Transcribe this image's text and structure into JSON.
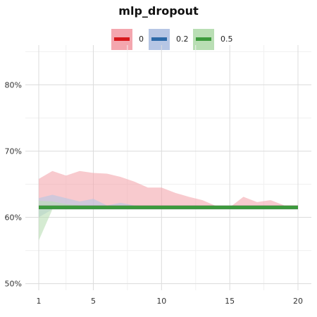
{
  "chart_data": {
    "type": "line",
    "title": "mlp_dropout",
    "xlabel": "",
    "ylabel": "",
    "x": [
      1,
      2,
      3,
      4,
      5,
      6,
      7,
      8,
      9,
      10,
      11,
      12,
      13,
      14,
      15,
      16,
      17,
      18,
      19,
      20
    ],
    "xticks": [
      1,
      5,
      10,
      15,
      20
    ],
    "xtick_labels": [
      "1",
      "5",
      "10",
      "15",
      "20"
    ],
    "xlim": [
      1,
      20
    ],
    "ylim": [
      0.49,
      0.86
    ],
    "yticks": [
      0.5,
      0.6,
      0.7,
      0.8
    ],
    "ytick_labels": [
      "50%",
      "60%",
      "70%",
      "80%"
    ],
    "grid": true,
    "legend_position": "top",
    "series": [
      {
        "name": "0",
        "color": "#d7191c",
        "band_color": "#f4a6ae",
        "values": [
          0.615,
          0.615,
          0.615,
          0.615,
          0.615,
          0.615,
          0.615,
          0.615,
          0.615,
          0.615,
          0.615,
          0.615,
          0.615,
          0.615,
          0.615,
          0.615,
          0.615,
          0.615,
          0.615,
          0.615
        ],
        "upper": [
          0.658,
          0.67,
          0.663,
          0.67,
          0.667,
          0.666,
          0.661,
          0.654,
          0.645,
          0.645,
          0.637,
          0.631,
          0.626,
          0.617,
          0.615,
          0.631,
          0.623,
          0.626,
          0.618,
          0.618
        ],
        "lower": [
          0.612,
          0.612,
          0.612,
          0.612,
          0.612,
          0.612,
          0.612,
          0.612,
          0.612,
          0.612,
          0.612,
          0.612,
          0.612,
          0.612,
          0.612,
          0.612,
          0.612,
          0.612,
          0.612,
          0.612
        ]
      },
      {
        "name": "0.2",
        "color": "#2c6aa8",
        "band_color": "#b6c6e4",
        "values": [
          0.615,
          0.615,
          0.615,
          0.615,
          0.615,
          0.615,
          0.615,
          0.615,
          0.615,
          0.615,
          0.615,
          0.615,
          0.615,
          0.615,
          0.615,
          0.615,
          0.615,
          0.615,
          0.615,
          0.615
        ],
        "upper": [
          0.629,
          0.634,
          0.629,
          0.624,
          0.628,
          0.618,
          0.622,
          0.618,
          0.617,
          0.617,
          0.617,
          0.617,
          0.617,
          0.617,
          0.617,
          0.617,
          0.617,
          0.617,
          0.617,
          0.617
        ],
        "lower": [
          0.6,
          0.612,
          0.612,
          0.612,
          0.612,
          0.612,
          0.612,
          0.612,
          0.612,
          0.612,
          0.612,
          0.612,
          0.612,
          0.612,
          0.612,
          0.612,
          0.612,
          0.612,
          0.612,
          0.612
        ]
      },
      {
        "name": "0.5",
        "color": "#3d9a3d",
        "band_color": "#b9deb4",
        "values": [
          0.615,
          0.615,
          0.615,
          0.615,
          0.615,
          0.615,
          0.615,
          0.615,
          0.615,
          0.615,
          0.615,
          0.615,
          0.615,
          0.615,
          0.615,
          0.615,
          0.615,
          0.615,
          0.615,
          0.615
        ],
        "upper": [
          0.625,
          0.624,
          0.62,
          0.618,
          0.617,
          0.617,
          0.617,
          0.617,
          0.617,
          0.617,
          0.617,
          0.617,
          0.617,
          0.617,
          0.617,
          0.617,
          0.617,
          0.617,
          0.617,
          0.617
        ],
        "lower": [
          0.565,
          0.612,
          0.612,
          0.612,
          0.612,
          0.612,
          0.612,
          0.612,
          0.612,
          0.612,
          0.612,
          0.612,
          0.612,
          0.612,
          0.612,
          0.612,
          0.612,
          0.612,
          0.612,
          0.612
        ]
      }
    ]
  }
}
